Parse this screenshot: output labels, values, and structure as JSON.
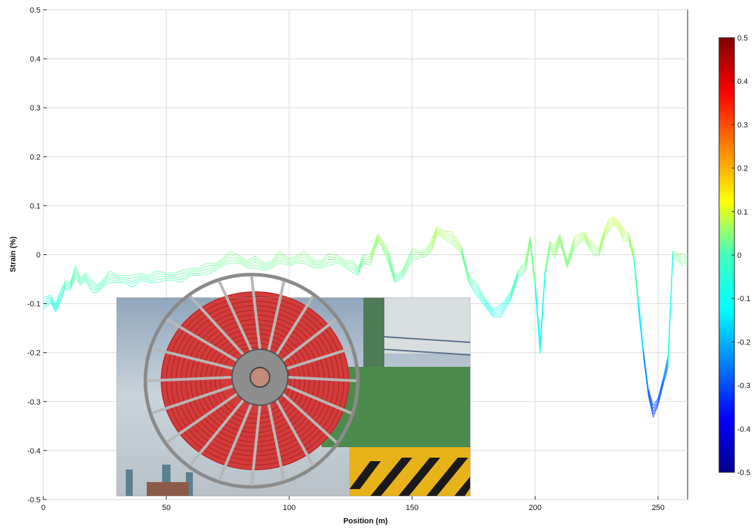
{
  "chart_data": {
    "type": "line",
    "title": "",
    "xlabel": "Position (m)",
    "ylabel": "Strain (%)",
    "xlim": [
      0,
      262
    ],
    "ylim": [
      -0.5,
      0.5
    ],
    "x_ticks": [
      0,
      50,
      100,
      150,
      200,
      250
    ],
    "y_ticks": [
      -0.5,
      -0.4,
      -0.3,
      -0.2,
      -0.1,
      0,
      0.1,
      0.2,
      0.3,
      0.4,
      0.5
    ],
    "x_tick_labels": [
      "0",
      "50",
      "100",
      "150",
      "200",
      "250"
    ],
    "y_tick_labels": [
      "-0.5",
      "-0.4",
      "-0.3",
      "-0.2",
      "-0.1",
      "0",
      "0.1",
      "0.2",
      "0.3",
      "0.4",
      "0.5"
    ],
    "grid": true,
    "line_color_mapping": "strain value mapped to jet colormap",
    "colorbar": {
      "range": [
        -0.5,
        0.5
      ],
      "colormap": "jet",
      "tick_labels": [
        "0.5",
        "0.4",
        "0.3",
        "0.2",
        "0.1",
        "0",
        "-0.1",
        "-0.2",
        "-0.3",
        "-0.4",
        "-0.5"
      ]
    },
    "inset_photo": "red cable reel mounted on green crane structure",
    "series": [
      {
        "x": [
          0,
          3,
          5,
          7,
          9,
          11,
          13,
          15,
          17,
          20,
          22,
          25,
          27,
          30,
          33,
          36,
          40,
          43,
          46,
          50,
          53,
          56,
          60,
          63,
          66,
          70,
          73,
          76,
          80,
          83,
          86,
          90,
          93,
          96,
          100,
          103,
          106,
          110,
          113,
          116,
          120,
          123,
          126,
          128,
          130,
          133,
          136,
          138,
          140,
          143,
          146,
          150,
          153,
          156,
          158,
          160,
          163,
          166,
          170,
          173,
          176,
          180,
          183,
          186,
          190,
          193,
          196,
          198,
          200,
          202,
          204,
          206,
          208,
          210,
          213,
          216,
          220,
          222,
          224,
          226,
          228,
          230,
          232,
          234,
          236,
          238,
          240,
          242,
          244,
          246,
          248,
          250,
          252,
          254,
          256,
          258,
          260,
          262
        ],
        "y": [
          -0.1,
          -0.09,
          -0.11,
          -0.085,
          -0.06,
          -0.065,
          -0.035,
          -0.055,
          -0.045,
          -0.065,
          -0.07,
          -0.055,
          -0.045,
          -0.05,
          -0.05,
          -0.055,
          -0.045,
          -0.05,
          -0.045,
          -0.045,
          -0.045,
          -0.045,
          -0.035,
          -0.035,
          -0.03,
          -0.025,
          -0.015,
          -0.005,
          -0.01,
          -0.02,
          -0.015,
          -0.025,
          -0.02,
          -0.005,
          -0.015,
          -0.01,
          -0.005,
          -0.02,
          -0.02,
          -0.01,
          -0.01,
          -0.02,
          -0.025,
          -0.035,
          -0.01,
          -0.01,
          0.035,
          0.02,
          0.0,
          -0.05,
          -0.04,
          0.0,
          0.0,
          0.005,
          0.02,
          0.05,
          0.04,
          0.035,
          0.01,
          -0.05,
          -0.07,
          -0.1,
          -0.12,
          -0.115,
          -0.085,
          -0.04,
          -0.025,
          0.03,
          -0.06,
          -0.19,
          -0.04,
          0.02,
          0.005,
          0.035,
          -0.02,
          0.025,
          0.04,
          0.02,
          0.01,
          0.005,
          0.04,
          0.06,
          0.07,
          0.06,
          0.04,
          0.035,
          0.0,
          -0.1,
          -0.2,
          -0.28,
          -0.32,
          -0.3,
          -0.26,
          -0.22,
          -0.0,
          -0.005,
          -0.01,
          -0.015
        ]
      }
    ]
  }
}
